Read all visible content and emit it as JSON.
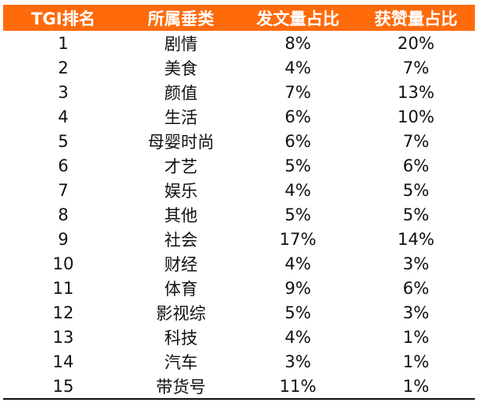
{
  "table": {
    "headers": [
      "TGI排名",
      "所属垂类",
      "发文量占比",
      "获赞量占比"
    ],
    "rows": [
      [
        "1",
        "剧情",
        "8%",
        "20%"
      ],
      [
        "2",
        "美食",
        "4%",
        "7%"
      ],
      [
        "3",
        "颜值",
        "7%",
        "13%"
      ],
      [
        "4",
        "生活",
        "6%",
        "10%"
      ],
      [
        "5",
        "母婴时尚",
        "6%",
        "7%"
      ],
      [
        "6",
        "才艺",
        "5%",
        "6%"
      ],
      [
        "7",
        "娱乐",
        "4%",
        "5%"
      ],
      [
        "8",
        "其他",
        "5%",
        "5%"
      ],
      [
        "9",
        "社会",
        "17%",
        "14%"
      ],
      [
        "10",
        "财经",
        "4%",
        "3%"
      ],
      [
        "11",
        "体育",
        "9%",
        "6%"
      ],
      [
        "12",
        "影视综",
        "5%",
        "3%"
      ],
      [
        "13",
        "科技",
        "4%",
        "1%"
      ],
      [
        "14",
        "汽车",
        "3%",
        "1%"
      ],
      [
        "15",
        "带货号",
        "11%",
        "1%"
      ]
    ]
  },
  "colors": {
    "header_bg": "#ff6a0a",
    "header_text": "#ffffff",
    "cell_text": "#111111"
  }
}
